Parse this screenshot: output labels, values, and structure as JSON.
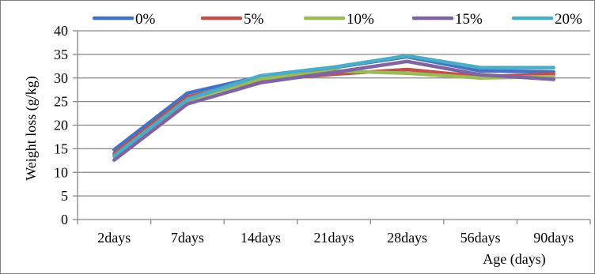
{
  "chart_data": {
    "type": "line",
    "title": "",
    "xlabel": "Age (days)",
    "ylabel": "Weight loss (g/kg)",
    "categories": [
      "2days",
      "7days",
      "14days",
      "21days",
      "28days",
      "56days",
      "90days"
    ],
    "ylim": [
      0,
      40
    ],
    "yticks": [
      0,
      5,
      10,
      15,
      20,
      25,
      30,
      35,
      40
    ],
    "grid": "horizontal",
    "legend_position": "top",
    "series": [
      {
        "name": "0%",
        "color": "#4472c4",
        "values": [
          14.8,
          26.8,
          30.3,
          32.2,
          34.5,
          31.5,
          31.3
        ]
      },
      {
        "name": "5%",
        "color": "#c0504d",
        "values": [
          14.0,
          26.0,
          29.5,
          30.8,
          31.8,
          30.3,
          30.8
        ]
      },
      {
        "name": "10%",
        "color": "#9bbb59",
        "values": [
          13.3,
          25.3,
          29.8,
          31.5,
          31.0,
          30.0,
          30.3
        ]
      },
      {
        "name": "15%",
        "color": "#8064a2",
        "values": [
          12.6,
          24.5,
          29.0,
          31.2,
          33.5,
          30.7,
          29.7
        ]
      },
      {
        "name": "20%",
        "color": "#4bacc6",
        "values": [
          13.5,
          25.5,
          30.5,
          32.3,
          34.7,
          32.2,
          32.2
        ]
      }
    ]
  }
}
